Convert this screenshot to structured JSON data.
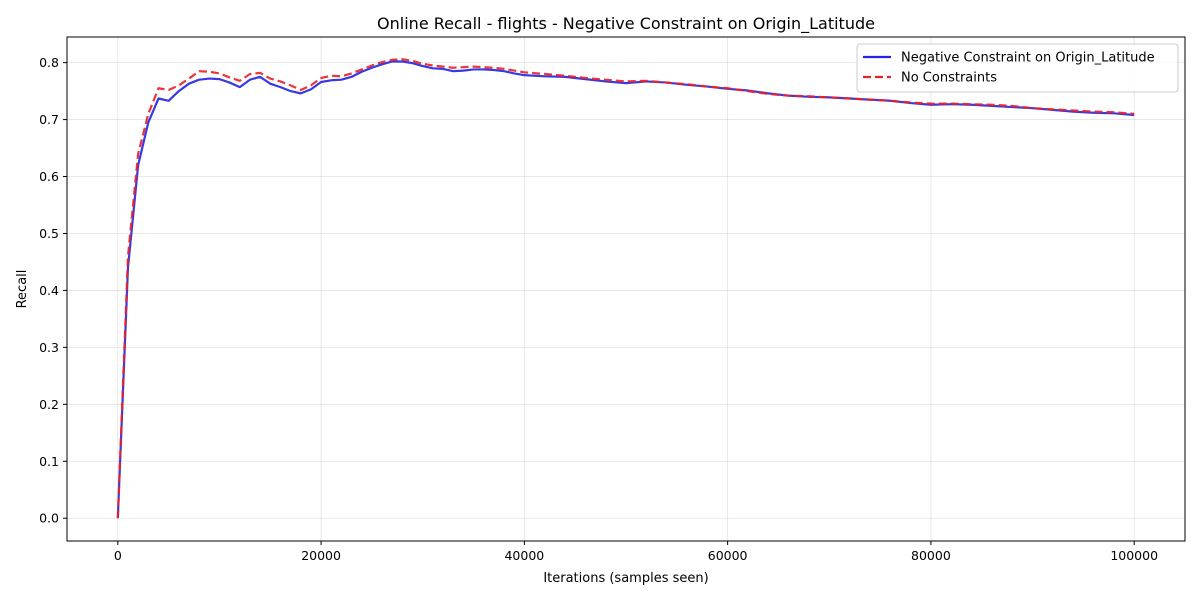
{
  "chart_data": {
    "type": "line",
    "title": "Online Recall - flights - Negative Constraint on Origin_Latitude",
    "xlabel": "Iterations (samples seen)",
    "ylabel": "Recall",
    "xlim": [
      -5000,
      105000
    ],
    "ylim": [
      -0.04,
      0.845
    ],
    "xticks": [
      0,
      20000,
      40000,
      60000,
      80000,
      100000
    ],
    "xtick_labels": [
      "0",
      "20000",
      "40000",
      "60000",
      "80000",
      "100000"
    ],
    "yticks": [
      0.0,
      0.1,
      0.2,
      0.3,
      0.4,
      0.5,
      0.6,
      0.7,
      0.8
    ],
    "ytick_labels": [
      "0.0",
      "0.1",
      "0.2",
      "0.3",
      "0.4",
      "0.5",
      "0.6",
      "0.7",
      "0.8"
    ],
    "grid": true,
    "legend_position": "top-right",
    "series": [
      {
        "name": "Negative Constraint on Origin_Latitude",
        "color": "#2323e0",
        "dash": "solid",
        "x": [
          0,
          1000,
          2000,
          3000,
          4000,
          5000,
          6000,
          7000,
          8000,
          9000,
          10000,
          11000,
          12000,
          13000,
          14000,
          15000,
          16000,
          17000,
          18000,
          19000,
          20000,
          21000,
          22000,
          23000,
          24000,
          25000,
          26000,
          27000,
          28000,
          29000,
          30000,
          31000,
          32000,
          33000,
          34000,
          35000,
          36000,
          37000,
          38000,
          39000,
          40000,
          42000,
          44000,
          46000,
          48000,
          50000,
          52000,
          54000,
          56000,
          58000,
          60000,
          62000,
          64000,
          66000,
          68000,
          70000,
          72000,
          74000,
          76000,
          78000,
          80000,
          82000,
          84000,
          86000,
          88000,
          90000,
          92000,
          94000,
          96000,
          98000,
          100000
        ],
        "y": [
          0.0,
          0.44,
          0.62,
          0.695,
          0.737,
          0.733,
          0.75,
          0.763,
          0.77,
          0.772,
          0.771,
          0.765,
          0.757,
          0.77,
          0.775,
          0.763,
          0.757,
          0.75,
          0.746,
          0.753,
          0.766,
          0.769,
          0.77,
          0.775,
          0.784,
          0.791,
          0.797,
          0.802,
          0.802,
          0.799,
          0.794,
          0.79,
          0.789,
          0.785,
          0.786,
          0.788,
          0.788,
          0.787,
          0.785,
          0.781,
          0.778,
          0.776,
          0.775,
          0.771,
          0.767,
          0.764,
          0.767,
          0.765,
          0.761,
          0.758,
          0.754,
          0.751,
          0.746,
          0.742,
          0.74,
          0.739,
          0.737,
          0.735,
          0.733,
          0.729,
          0.726,
          0.727,
          0.726,
          0.724,
          0.722,
          0.72,
          0.717,
          0.714,
          0.712,
          0.711,
          0.708
        ]
      },
      {
        "name": "No Constraints",
        "color": "#e8202a",
        "dash": "dashed",
        "x": [
          0,
          1000,
          2000,
          3000,
          4000,
          5000,
          6000,
          7000,
          8000,
          9000,
          10000,
          11000,
          12000,
          13000,
          14000,
          15000,
          16000,
          17000,
          18000,
          19000,
          20000,
          21000,
          22000,
          23000,
          24000,
          25000,
          26000,
          27000,
          28000,
          29000,
          30000,
          31000,
          32000,
          33000,
          34000,
          35000,
          36000,
          37000,
          38000,
          39000,
          40000,
          42000,
          44000,
          46000,
          48000,
          50000,
          52000,
          54000,
          56000,
          58000,
          60000,
          62000,
          64000,
          66000,
          68000,
          70000,
          72000,
          74000,
          76000,
          78000,
          80000,
          82000,
          84000,
          86000,
          88000,
          90000,
          92000,
          94000,
          96000,
          98000,
          100000
        ],
        "y": [
          0.0,
          0.46,
          0.64,
          0.71,
          0.755,
          0.752,
          0.76,
          0.772,
          0.785,
          0.784,
          0.781,
          0.774,
          0.768,
          0.78,
          0.782,
          0.772,
          0.767,
          0.76,
          0.752,
          0.76,
          0.773,
          0.777,
          0.776,
          0.781,
          0.788,
          0.795,
          0.801,
          0.805,
          0.806,
          0.803,
          0.798,
          0.795,
          0.793,
          0.791,
          0.792,
          0.793,
          0.792,
          0.791,
          0.789,
          0.786,
          0.783,
          0.78,
          0.777,
          0.773,
          0.77,
          0.767,
          0.768,
          0.765,
          0.762,
          0.758,
          0.755,
          0.75,
          0.745,
          0.742,
          0.741,
          0.739,
          0.737,
          0.735,
          0.733,
          0.73,
          0.728,
          0.728,
          0.727,
          0.726,
          0.724,
          0.72,
          0.718,
          0.716,
          0.714,
          0.713,
          0.71
        ]
      }
    ]
  }
}
